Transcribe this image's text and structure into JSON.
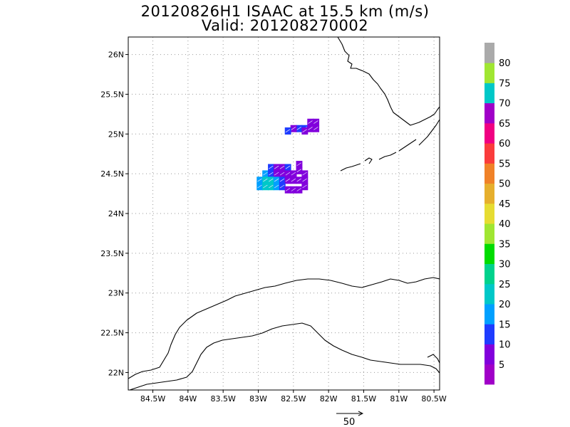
{
  "title": {
    "line1": "20120826H1 ISAAC at 15.5 km (m/s)",
    "line2": "Valid: 201208270002"
  },
  "map": {
    "lon_range": [
      -84.85,
      -80.42
    ],
    "lat_range": [
      21.78,
      26.22
    ],
    "lon_ticks": [
      {
        "value": -84.5,
        "label": "84.5W"
      },
      {
        "value": -84.0,
        "label": "84W"
      },
      {
        "value": -83.5,
        "label": "83.5W"
      },
      {
        "value": -83.0,
        "label": "83W"
      },
      {
        "value": -82.5,
        "label": "82.5W"
      },
      {
        "value": -82.0,
        "label": "82W"
      },
      {
        "value": -81.5,
        "label": "81.5W"
      },
      {
        "value": -81.0,
        "label": "81W"
      },
      {
        "value": -80.5,
        "label": "80.5W"
      }
    ],
    "lat_ticks": [
      {
        "value": 22.0,
        "label": "22N"
      },
      {
        "value": 22.5,
        "label": "22.5N"
      },
      {
        "value": 23.0,
        "label": "23N"
      },
      {
        "value": 23.5,
        "label": "23.5N"
      },
      {
        "value": 24.0,
        "label": "24N"
      },
      {
        "value": 24.5,
        "label": "24.5N"
      },
      {
        "value": 25.0,
        "label": "25N"
      },
      {
        "value": 25.5,
        "label": "25.5N"
      },
      {
        "value": 26.0,
        "label": "26N"
      }
    ],
    "gridlines": true,
    "coastline_color": "#000000",
    "wind_cells": [
      {
        "lon": -82.42,
        "lat": 25.07,
        "speed": 12
      },
      {
        "lon": -82.34,
        "lat": 25.07,
        "speed": 12
      },
      {
        "lon": -82.26,
        "lat": 25.07,
        "speed": 8
      },
      {
        "lon": -82.5,
        "lat": 25.07,
        "speed": 5
      },
      {
        "lon": -82.26,
        "lat": 25.15,
        "speed": 8
      },
      {
        "lon": -82.18,
        "lat": 25.15,
        "speed": 8
      },
      {
        "lon": -82.18,
        "lat": 25.07,
        "speed": 5
      },
      {
        "lon": -82.58,
        "lat": 25.04,
        "speed": 12
      },
      {
        "lon": -82.34,
        "lat": 25.04,
        "speed": 5
      },
      {
        "lon": -82.82,
        "lat": 24.58,
        "speed": 12
      },
      {
        "lon": -82.74,
        "lat": 24.58,
        "speed": 5
      },
      {
        "lon": -82.66,
        "lat": 24.58,
        "speed": 5
      },
      {
        "lon": -82.58,
        "lat": 24.58,
        "speed": 12
      },
      {
        "lon": -82.42,
        "lat": 24.62,
        "speed": 5
      },
      {
        "lon": -82.42,
        "lat": 24.54,
        "speed": 5
      },
      {
        "lon": -82.34,
        "lat": 24.5,
        "speed": 8
      },
      {
        "lon": -82.9,
        "lat": 24.5,
        "speed": 17
      },
      {
        "lon": -82.82,
        "lat": 24.5,
        "speed": 12
      },
      {
        "lon": -82.74,
        "lat": 24.5,
        "speed": 5
      },
      {
        "lon": -82.66,
        "lat": 24.5,
        "speed": 5
      },
      {
        "lon": -82.58,
        "lat": 24.5,
        "speed": 5
      },
      {
        "lon": -82.5,
        "lat": 24.5,
        "speed": 5
      },
      {
        "lon": -82.98,
        "lat": 24.42,
        "speed": 17
      },
      {
        "lon": -82.9,
        "lat": 24.42,
        "speed": 20
      },
      {
        "lon": -82.82,
        "lat": 24.42,
        "speed": 20
      },
      {
        "lon": -82.74,
        "lat": 24.42,
        "speed": 17
      },
      {
        "lon": -82.66,
        "lat": 24.42,
        "speed": 12
      },
      {
        "lon": -82.58,
        "lat": 24.42,
        "speed": 5
      },
      {
        "lon": -82.5,
        "lat": 24.42,
        "speed": 5
      },
      {
        "lon": -82.42,
        "lat": 24.42,
        "speed": 5
      },
      {
        "lon": -82.34,
        "lat": 24.42,
        "speed": 5
      },
      {
        "lon": -82.98,
        "lat": 24.34,
        "speed": 17
      },
      {
        "lon": -82.9,
        "lat": 24.34,
        "speed": 20
      },
      {
        "lon": -82.82,
        "lat": 24.34,
        "speed": 20
      },
      {
        "lon": -82.74,
        "lat": 24.34,
        "speed": 17
      },
      {
        "lon": -82.66,
        "lat": 24.34,
        "speed": 12
      },
      {
        "lon": -82.58,
        "lat": 24.3,
        "speed": 5
      },
      {
        "lon": -82.5,
        "lat": 24.3,
        "speed": 5
      },
      {
        "lon": -82.42,
        "lat": 24.3,
        "speed": 5
      },
      {
        "lon": -82.34,
        "lat": 24.34,
        "speed": 5
      }
    ]
  },
  "colorbar": {
    "labels": [
      "5",
      "10",
      "15",
      "20",
      "25",
      "30",
      "35",
      "40",
      "45",
      "50",
      "55",
      "60",
      "65",
      "70",
      "75",
      "80"
    ],
    "colors": [
      "#a000c8",
      "#8200dc",
      "#1e3cff",
      "#00a0ff",
      "#00c8c8",
      "#00d28c",
      "#00dc00",
      "#a0e632",
      "#e6dc32",
      "#e6af2d",
      "#f08228",
      "#fa3c3c",
      "#f00082",
      "#a000c8",
      "#00c8c8",
      "#a0e632",
      "#aaaaaa"
    ]
  },
  "reference_vector": {
    "label": "50"
  }
}
